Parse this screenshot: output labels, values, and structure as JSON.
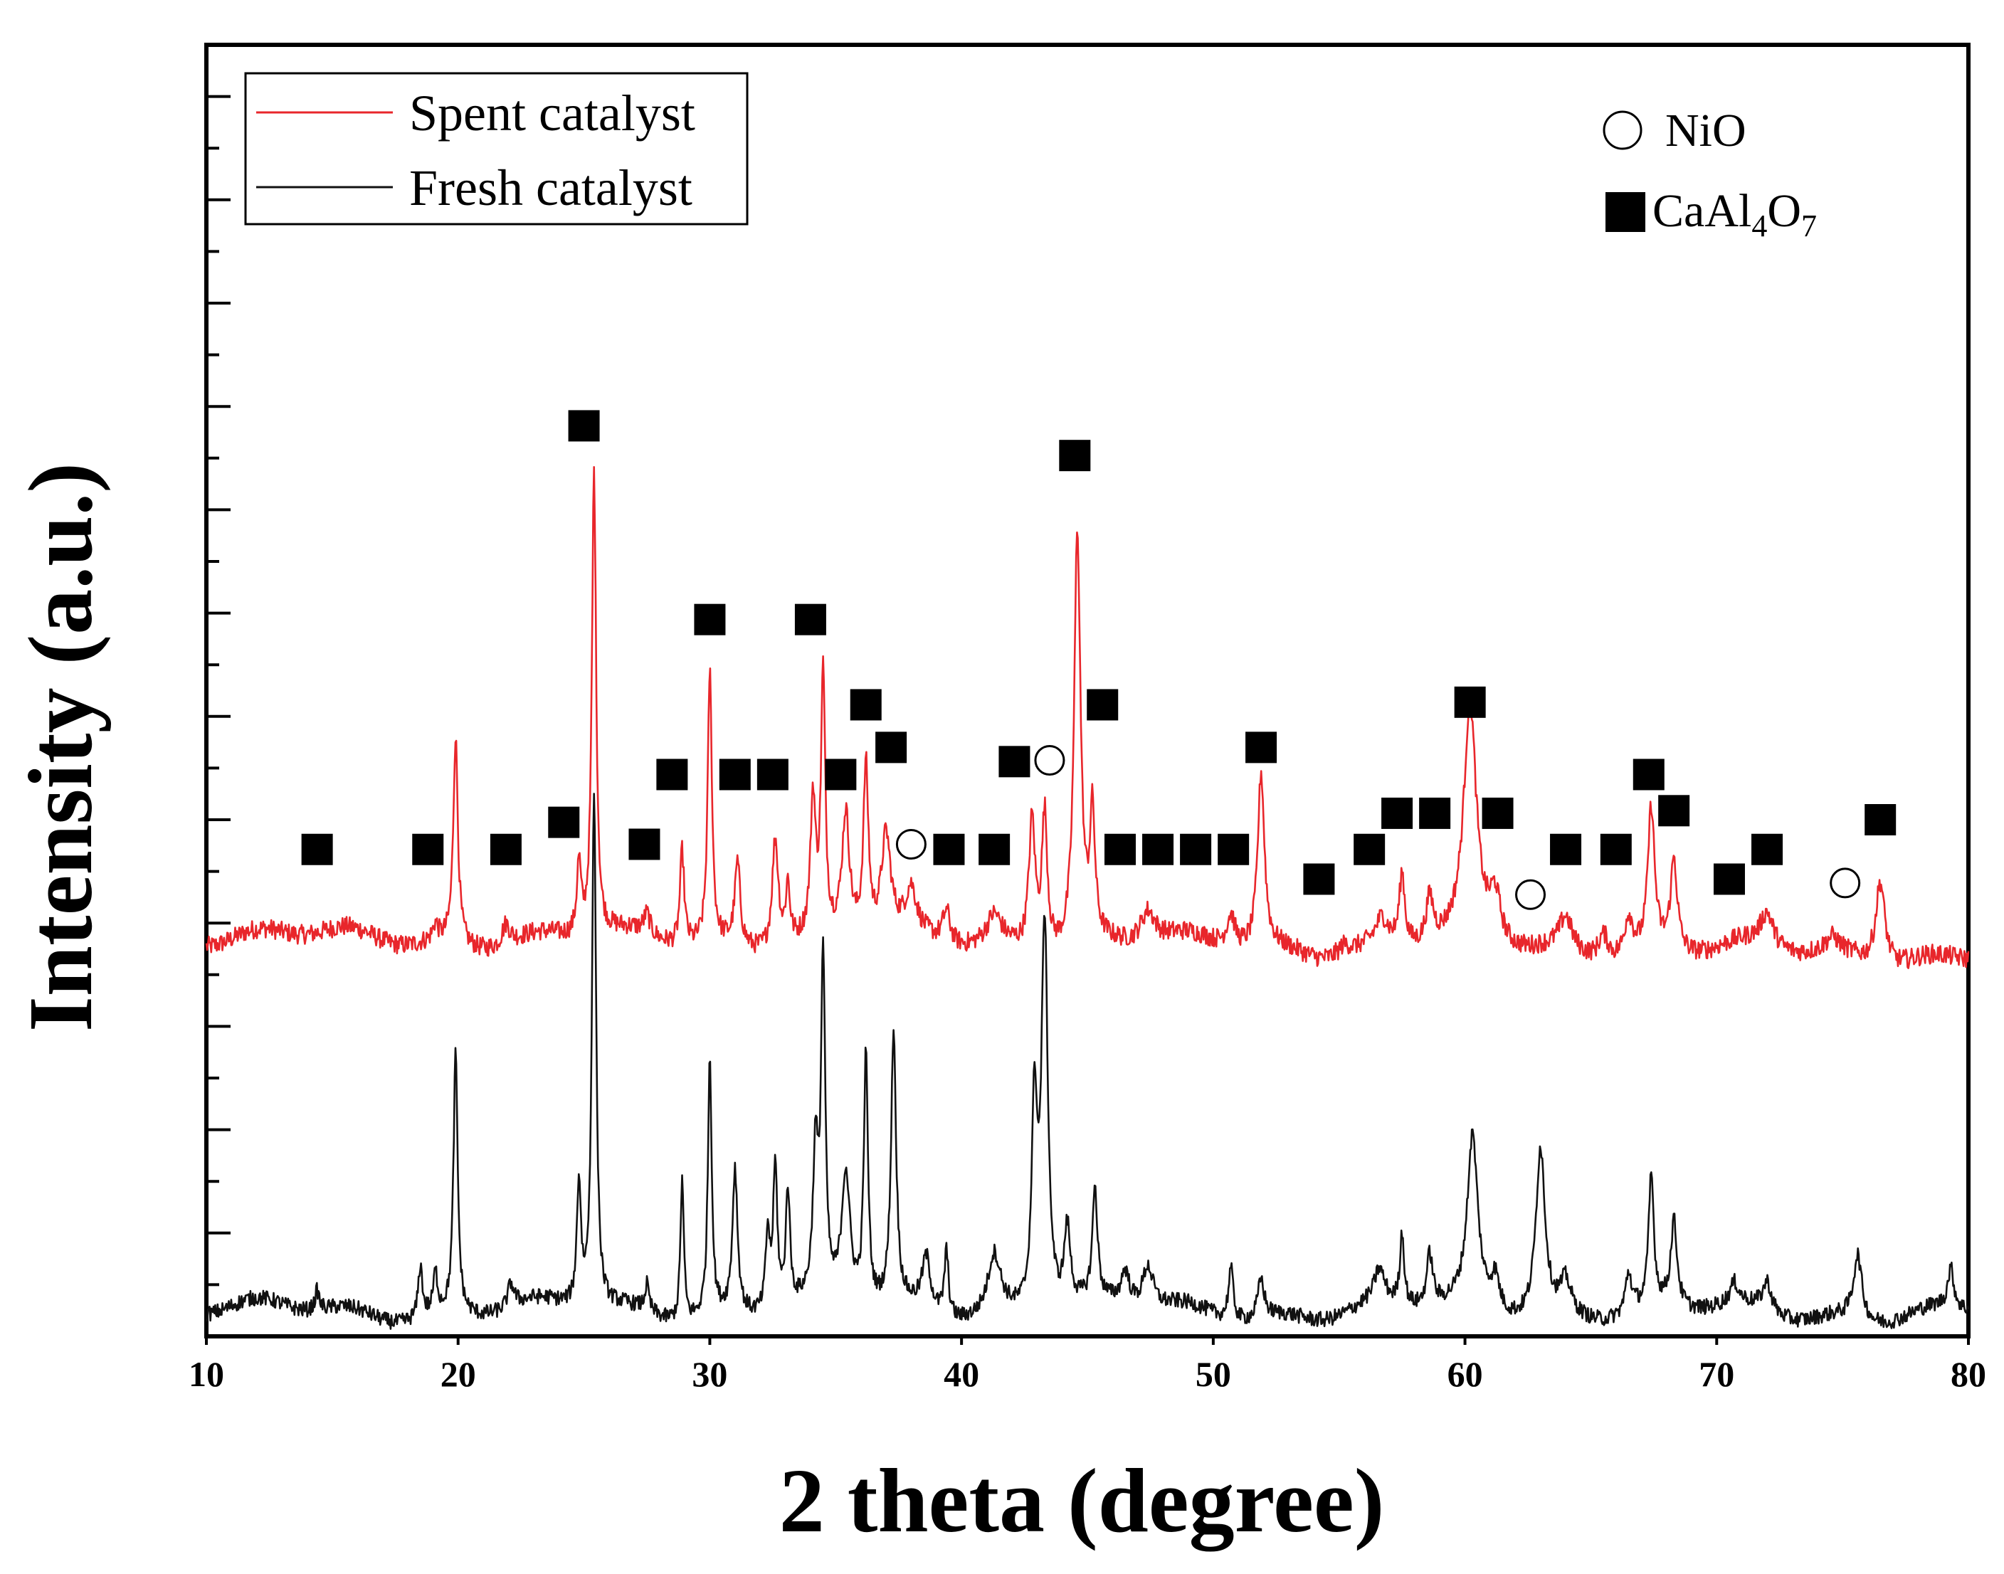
{
  "chart_data": {
    "type": "line",
    "title": "",
    "xlabel": "2 theta (degree)",
    "ylabel": "Intensity (a.u.)",
    "xlim": [
      10,
      80
    ],
    "ylim": [
      0,
      100
    ],
    "x_ticks": [
      10,
      20,
      30,
      40,
      50,
      60,
      70,
      80
    ],
    "y_tick_labels_shown": false,
    "grid": false,
    "legend_placement": "top-left",
    "series": [
      {
        "name": "Spent catalyst",
        "color": "#e8262b",
        "baseline": 31,
        "baseline_end": 29.5,
        "peaks": [
          [
            19.1,
            1.2,
            0.12
          ],
          [
            19.9,
            16,
            0.11
          ],
          [
            21.9,
            1.6,
            0.2
          ],
          [
            24.8,
            5.5,
            0.1
          ],
          [
            25.4,
            36,
            0.1
          ],
          [
            27.5,
            1.5,
            0.15
          ],
          [
            28.9,
            7.3,
            0.1
          ],
          [
            30.0,
            21,
            0.1
          ],
          [
            31.1,
            6.3,
            0.13
          ],
          [
            32.6,
            8.5,
            0.15
          ],
          [
            33.1,
            4.5,
            0.1
          ],
          [
            34.1,
            10.5,
            0.12
          ],
          [
            34.5,
            20,
            0.1
          ],
          [
            35.4,
            9.5,
            0.18
          ],
          [
            36.2,
            13,
            0.12
          ],
          [
            37.0,
            7.5,
            0.22
          ],
          [
            38.0,
            3.2,
            0.25
          ],
          [
            39.4,
            2.5,
            0.18
          ],
          [
            41.3,
            2.2,
            0.35
          ],
          [
            42.8,
            10,
            0.15
          ],
          [
            43.3,
            10.5,
            0.13
          ],
          [
            44.6,
            32,
            0.15
          ],
          [
            45.2,
            9.5,
            0.12
          ],
          [
            47.4,
            2.5,
            0.35
          ],
          [
            50.7,
            2.5,
            0.2
          ],
          [
            51.9,
            13.5,
            0.16
          ],
          [
            55.2,
            0.8,
            0.3
          ],
          [
            56.7,
            2.0,
            0.3
          ],
          [
            57.5,
            5.5,
            0.13
          ],
          [
            58.6,
            3.5,
            0.18
          ],
          [
            60.2,
            18,
            0.3
          ],
          [
            61.2,
            3.5,
            0.25
          ],
          [
            64.0,
            2.5,
            0.3
          ],
          [
            65.5,
            2.0,
            0.25
          ],
          [
            66.5,
            3.0,
            0.2
          ],
          [
            67.4,
            11,
            0.16
          ],
          [
            68.3,
            7.0,
            0.16
          ],
          [
            72.0,
            2.5,
            0.3
          ],
          [
            74.6,
            1.0,
            0.3
          ],
          [
            76.5,
            6.5,
            0.22
          ]
        ]
      },
      {
        "name": "Fresh catalyst",
        "color": "#111111",
        "baseline": 2,
        "baseline_end": 1.8,
        "peaks": [
          [
            14.4,
            1.5,
            0.1
          ],
          [
            18.5,
            4.0,
            0.1
          ],
          [
            19.1,
            3.0,
            0.1
          ],
          [
            19.9,
            20,
            0.1
          ],
          [
            22.1,
            1.8,
            0.15
          ],
          [
            24.8,
            9.5,
            0.1
          ],
          [
            25.4,
            40,
            0.1
          ],
          [
            27.5,
            2.0,
            0.1
          ],
          [
            28.9,
            11,
            0.08
          ],
          [
            30.0,
            20,
            0.09
          ],
          [
            31.0,
            11,
            0.12
          ],
          [
            32.3,
            6.0,
            0.1
          ],
          [
            32.6,
            11,
            0.1
          ],
          [
            33.1,
            9.0,
            0.1
          ],
          [
            34.2,
            11,
            0.12
          ],
          [
            34.5,
            26,
            0.1
          ],
          [
            35.4,
            10,
            0.2
          ],
          [
            36.2,
            19,
            0.1
          ],
          [
            37.3,
            21,
            0.12
          ],
          [
            38.6,
            4.0,
            0.2
          ],
          [
            39.4,
            5.0,
            0.1
          ],
          [
            41.3,
            4.5,
            0.3
          ],
          [
            42.9,
            16,
            0.13
          ],
          [
            43.3,
            30,
            0.15
          ],
          [
            44.2,
            6.0,
            0.15
          ],
          [
            45.3,
            8.5,
            0.12
          ],
          [
            46.5,
            2.5,
            0.2
          ],
          [
            47.4,
            3.2,
            0.25
          ],
          [
            50.7,
            4.0,
            0.12
          ],
          [
            51.9,
            3.0,
            0.15
          ],
          [
            56.6,
            2.5,
            0.25
          ],
          [
            57.5,
            5.5,
            0.1
          ],
          [
            58.6,
            4.0,
            0.15
          ],
          [
            60.3,
            13,
            0.25
          ],
          [
            61.2,
            2.5,
            0.2
          ],
          [
            63.0,
            13,
            0.22
          ],
          [
            64.0,
            2.5,
            0.25
          ],
          [
            66.5,
            3.0,
            0.15
          ],
          [
            67.4,
            10,
            0.12
          ],
          [
            68.3,
            6.5,
            0.15
          ],
          [
            70.7,
            1.5,
            0.2
          ],
          [
            72.0,
            2.2,
            0.2
          ],
          [
            75.6,
            5.0,
            0.2
          ],
          [
            79.3,
            3.0,
            0.15
          ]
        ]
      }
    ],
    "markers": {
      "legend": [
        {
          "symbol": "open-circle",
          "label": "NiO"
        },
        {
          "symbol": "filled-square",
          "label_main": "CaAl",
          "sub1": "4",
          "label_mid": "O",
          "sub2": "7"
        }
      ],
      "caal4o7_positions": [
        [
          14.4,
          37.7
        ],
        [
          18.8,
          37.7
        ],
        [
          21.9,
          37.7
        ],
        [
          24.2,
          39.8
        ],
        [
          25.0,
          70.5
        ],
        [
          27.4,
          38.1
        ],
        [
          28.5,
          43.5
        ],
        [
          30.0,
          55.5
        ],
        [
          31.0,
          43.5
        ],
        [
          32.5,
          43.5
        ],
        [
          34.0,
          55.5
        ],
        [
          35.2,
          43.5
        ],
        [
          36.2,
          48.9
        ],
        [
          37.2,
          45.6
        ],
        [
          39.5,
          37.7
        ],
        [
          41.3,
          37.7
        ],
        [
          42.1,
          44.5
        ],
        [
          44.5,
          68.2
        ],
        [
          45.6,
          48.9
        ],
        [
          46.3,
          37.7
        ],
        [
          47.8,
          37.7
        ],
        [
          49.3,
          37.7
        ],
        [
          50.8,
          37.7
        ],
        [
          51.9,
          45.6
        ],
        [
          54.2,
          35.4
        ],
        [
          56.2,
          37.7
        ],
        [
          57.3,
          40.5
        ],
        [
          58.8,
          40.5
        ],
        [
          60.2,
          49.1
        ],
        [
          61.3,
          40.5
        ],
        [
          64.0,
          37.7
        ],
        [
          66.0,
          37.7
        ],
        [
          67.3,
          43.5
        ],
        [
          68.3,
          40.7
        ],
        [
          70.5,
          35.4
        ],
        [
          72.0,
          37.7
        ],
        [
          76.5,
          40.0
        ]
      ],
      "nio_positions": [
        [
          38.0,
          38.1
        ],
        [
          43.5,
          44.6
        ],
        [
          62.6,
          34.2
        ],
        [
          75.1,
          35.1
        ]
      ]
    }
  }
}
